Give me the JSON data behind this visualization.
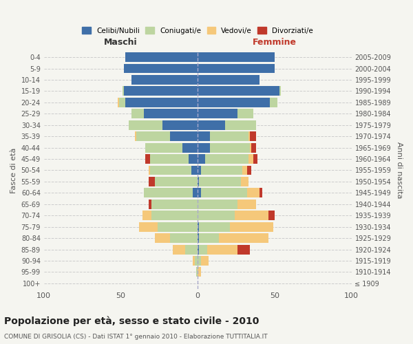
{
  "age_groups": [
    "100+",
    "95-99",
    "90-94",
    "85-89",
    "80-84",
    "75-79",
    "70-74",
    "65-69",
    "60-64",
    "55-59",
    "50-54",
    "45-49",
    "40-44",
    "35-39",
    "30-34",
    "25-29",
    "20-24",
    "15-19",
    "10-14",
    "5-9",
    "0-4"
  ],
  "birth_years": [
    "≤ 1909",
    "1910-1914",
    "1915-1919",
    "1920-1924",
    "1925-1929",
    "1930-1934",
    "1935-1939",
    "1940-1944",
    "1945-1949",
    "1950-1954",
    "1955-1959",
    "1960-1964",
    "1965-1969",
    "1970-1974",
    "1975-1979",
    "1980-1984",
    "1985-1989",
    "1990-1994",
    "1995-1999",
    "2000-2004",
    "2005-2009"
  ],
  "male": {
    "celibi": [
      0,
      0,
      0,
      0,
      0,
      0,
      0,
      0,
      3,
      0,
      4,
      6,
      10,
      18,
      23,
      35,
      47,
      48,
      43,
      48,
      47
    ],
    "coniugati": [
      0,
      1,
      2,
      8,
      18,
      26,
      30,
      30,
      32,
      28,
      27,
      25,
      24,
      22,
      22,
      8,
      4,
      1,
      0,
      0,
      0
    ],
    "vedovi": [
      0,
      0,
      1,
      8,
      10,
      12,
      6,
      0,
      0,
      0,
      1,
      0,
      0,
      1,
      0,
      0,
      1,
      0,
      0,
      0,
      0
    ],
    "divorziati": [
      0,
      0,
      0,
      0,
      0,
      0,
      0,
      2,
      0,
      4,
      0,
      3,
      0,
      0,
      0,
      0,
      0,
      0,
      0,
      0,
      0
    ]
  },
  "female": {
    "nubili": [
      0,
      0,
      0,
      1,
      1,
      1,
      0,
      0,
      2,
      1,
      2,
      5,
      8,
      8,
      18,
      26,
      47,
      53,
      40,
      50,
      50
    ],
    "coniugate": [
      0,
      0,
      2,
      5,
      13,
      20,
      24,
      26,
      30,
      27,
      27,
      28,
      26,
      25,
      20,
      10,
      5,
      1,
      0,
      0,
      0
    ],
    "vedove": [
      0,
      2,
      5,
      20,
      32,
      28,
      22,
      12,
      8,
      5,
      3,
      3,
      1,
      1,
      0,
      0,
      0,
      0,
      0,
      0,
      0
    ],
    "divorziate": [
      0,
      0,
      0,
      8,
      0,
      0,
      4,
      0,
      2,
      0,
      3,
      3,
      3,
      4,
      0,
      0,
      0,
      0,
      0,
      0,
      0
    ]
  },
  "colors": {
    "celibi": "#3f6fa8",
    "coniugati": "#bdd5a0",
    "vedovi": "#f5c87a",
    "divorziati": "#c0392b"
  },
  "xlim": 100,
  "title": "Popolazione per età, sesso e stato civile - 2010",
  "subtitle": "COMUNE DI GRISOLIA (CS) - Dati ISTAT 1° gennaio 2010 - Elaborazione TUTTITALIA.IT",
  "ylabel_left": "Fasce di età",
  "ylabel_right": "Anni di nascita",
  "xlabel_left": "Maschi",
  "xlabel_right": "Femmine",
  "bg_color": "#f5f5f0",
  "legend_labels": [
    "Celibi/Nubili",
    "Coniugati/e",
    "Vedovi/e",
    "Divorziati/e"
  ]
}
